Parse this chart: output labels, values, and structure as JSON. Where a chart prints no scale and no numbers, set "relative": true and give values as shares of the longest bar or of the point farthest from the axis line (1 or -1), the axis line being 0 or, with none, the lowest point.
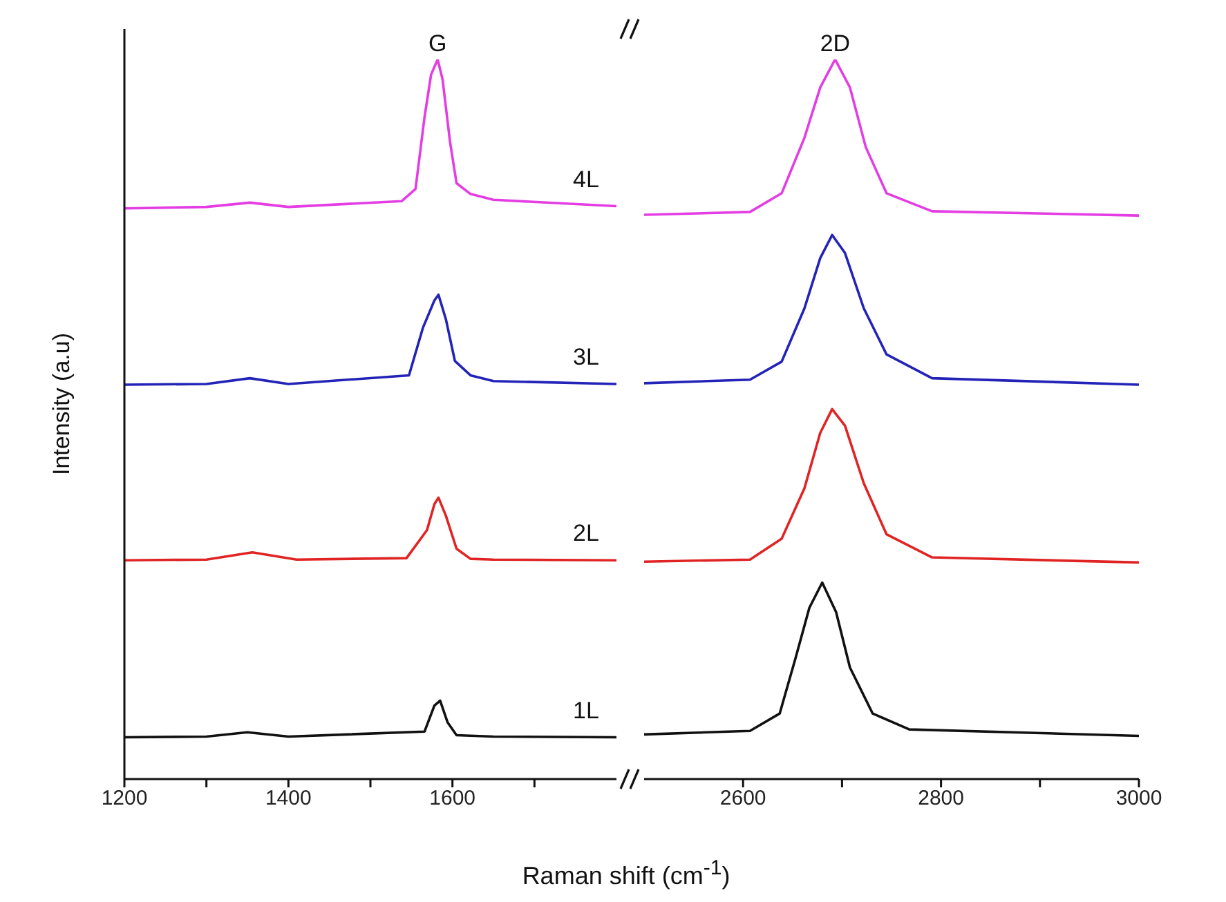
{
  "chart_data": [
    {
      "type": "line",
      "relative": true,
      "xlabel": "Raman shift (cm$^{-1}$)",
      "ylabel": "Intensity (a.u)",
      "xlim": [
        1200,
        1800
      ],
      "xticks": [
        1200,
        {
          "value": 1300,
          "label": null
        },
        1400,
        {
          "value": 1500,
          "label": null
        },
        1600,
        {
          "value": 1700,
          "label": null
        }
      ],
      "tick_labels": "x",
      "grid": false,
      "legend": false,
      "marker": "none",
      "line_style": "solid",
      "annotations": [
        {
          "text": "G",
          "x": 1582,
          "y": 1
        }
      ],
      "series": [
        {
          "name": "4L",
          "color": "#e33de3",
          "x": [
            1200,
            1300,
            1353,
            1400,
            1538,
            1555,
            1566,
            1574,
            1582,
            1588,
            1597,
            1605,
            1622,
            1650,
            1800
          ],
          "values": [
            0.793,
            0.795,
            0.801,
            0.795,
            0.803,
            0.82,
            0.92,
            0.979,
            1,
            0.972,
            0.886,
            0.828,
            0.813,
            0.805,
            0.796
          ]
        },
        {
          "name": "3L",
          "color": "#2323b8",
          "x": [
            1200,
            1300,
            1353,
            1400,
            1547,
            1564,
            1578,
            1583,
            1592,
            1603,
            1622,
            1650,
            1800
          ],
          "values": [
            0.548,
            0.549,
            0.557,
            0.549,
            0.561,
            0.627,
            0.665,
            0.673,
            0.639,
            0.581,
            0.561,
            0.553,
            0.549
          ]
        },
        {
          "name": "2L",
          "color": "#e02424",
          "x": [
            1200,
            1300,
            1356,
            1410,
            1544,
            1569,
            1578,
            1583,
            1592,
            1605,
            1622,
            1650,
            1800
          ],
          "values": [
            0.304,
            0.305,
            0.315,
            0.305,
            0.307,
            0.346,
            0.382,
            0.391,
            0.366,
            0.32,
            0.306,
            0.305,
            0.304
          ]
        },
        {
          "name": "1L",
          "color": "#111111",
          "x": [
            1200,
            1300,
            1350,
            1400,
            1566,
            1578,
            1585,
            1594,
            1605,
            1650,
            1800
          ],
          "values": [
            0.058,
            0.059,
            0.065,
            0.059,
            0.066,
            0.102,
            0.109,
            0.079,
            0.061,
            0.059,
            0.058
          ]
        }
      ]
    },
    {
      "type": "line",
      "relative": true,
      "xlim": [
        2500,
        3000
      ],
      "xticks": [
        2600,
        {
          "value": 2700,
          "label": null
        },
        2800,
        {
          "value": 2900,
          "label": null
        },
        3000
      ],
      "tick_labels": "x",
      "grid": false,
      "legend": false,
      "marker": "none",
      "line_style": "solid",
      "annotations": [
        {
          "text": "2D",
          "x": 2693,
          "y": 1
        }
      ],
      "series": [
        {
          "color": "#e33de3",
          "x": [
            2500,
            2607,
            2639,
            2662,
            2678,
            2693,
            2708,
            2724,
            2745,
            2791,
            3000
          ],
          "values": [
            0.784,
            0.788,
            0.814,
            0.891,
            0.961,
            1,
            0.961,
            0.878,
            0.814,
            0.789,
            0.783
          ]
        },
        {
          "color": "#2323b8",
          "x": [
            2500,
            2607,
            2639,
            2662,
            2678,
            2690,
            2703,
            2722,
            2745,
            2791,
            3000
          ],
          "values": [
            0.55,
            0.555,
            0.58,
            0.654,
            0.724,
            0.756,
            0.731,
            0.654,
            0.59,
            0.557,
            0.548
          ]
        },
        {
          "color": "#e02424",
          "x": [
            2500,
            2607,
            2639,
            2662,
            2678,
            2690,
            2703,
            2722,
            2745,
            2791,
            3000
          ],
          "values": [
            0.302,
            0.305,
            0.334,
            0.404,
            0.481,
            0.514,
            0.491,
            0.411,
            0.34,
            0.308,
            0.301
          ]
        },
        {
          "color": "#111111",
          "x": [
            2500,
            2607,
            2637,
            2653,
            2667,
            2680,
            2694,
            2708,
            2731,
            2768,
            3000
          ],
          "values": [
            0.062,
            0.067,
            0.091,
            0.168,
            0.238,
            0.273,
            0.232,
            0.155,
            0.091,
            0.069,
            0.06
          ]
        }
      ]
    }
  ]
}
